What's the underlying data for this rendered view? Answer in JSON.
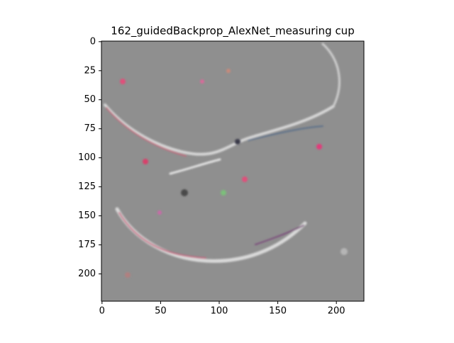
{
  "chart_data": {
    "type": "image",
    "title": "162_guidedBackprop_AlexNet_measuring cup",
    "xlim": [
      -0.5,
      223.5
    ],
    "ylim": [
      223.5,
      -0.5
    ],
    "xticks": [
      0,
      50,
      100,
      150,
      200
    ],
    "yticks": [
      0,
      25,
      50,
      75,
      100,
      125,
      150,
      175,
      200
    ]
  }
}
